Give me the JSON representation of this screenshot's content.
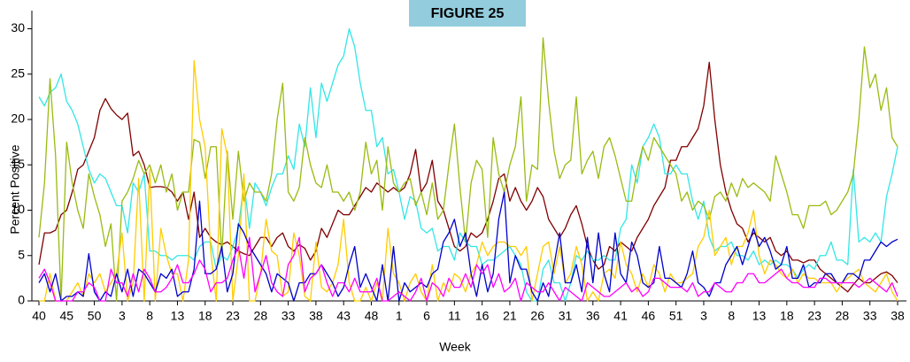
{
  "chart_data": {
    "type": "line",
    "title": "FIGURE 25",
    "x_label": "Week",
    "y_label": "Percent  Positive",
    "categories": [
      "40",
      null,
      null,
      null,
      null,
      "45",
      null,
      null,
      null,
      null,
      "50",
      null,
      null,
      null,
      null,
      "3",
      null,
      null,
      null,
      null,
      "8",
      null,
      null,
      null,
      null,
      "13",
      null,
      null,
      null,
      null,
      "18",
      null,
      null,
      null,
      null,
      "23",
      null,
      null,
      null,
      null,
      "28",
      null,
      null,
      null,
      null,
      "33",
      null,
      null,
      null,
      null,
      "38",
      null,
      null,
      null,
      null,
      "43",
      null,
      null,
      null,
      null,
      "48",
      null,
      null,
      null,
      null,
      "1",
      null,
      null,
      null,
      null,
      "6",
      null,
      null,
      null,
      null,
      "11",
      null,
      null,
      null,
      null,
      "16",
      null,
      null,
      null,
      null,
      "21",
      null,
      null,
      null,
      null,
      "26",
      null,
      null,
      null,
      null,
      "31",
      null,
      null,
      null,
      null,
      "36",
      null,
      null,
      null,
      null,
      "41",
      null,
      null,
      null,
      null,
      "46",
      null,
      null,
      null,
      null,
      "51",
      null,
      null,
      null,
      null,
      "3",
      null,
      null,
      null,
      null,
      "8",
      null,
      null,
      null,
      null,
      "13",
      null,
      null,
      null,
      null,
      "18",
      null,
      null,
      null,
      null,
      "23",
      null,
      null,
      null,
      null,
      "28",
      null,
      null,
      null,
      null,
      "33",
      null,
      null,
      null,
      null,
      "38"
    ],
    "series": [
      {
        "color": "#800000",
        "values": [
          4,
          7.5,
          7.5,
          7.8,
          9.5,
          10,
          12,
          14.5,
          15,
          16.5,
          18,
          21,
          22.3,
          21.2,
          20.5,
          20,
          20.7,
          16,
          16.5,
          15,
          12.5,
          12.6,
          12.6,
          12.5,
          12,
          11,
          12,
          9,
          12,
          7,
          8,
          7,
          6.5,
          6.2,
          6.5,
          6,
          5.5,
          5.2,
          5,
          6,
          7,
          7,
          6,
          7,
          7.5,
          6,
          5.5,
          6.2,
          5.8,
          4.5,
          5.5,
          8,
          7,
          8.5,
          10,
          9.5,
          9.5,
          10.5,
          11.5,
          12.5,
          12,
          13,
          12.5,
          12,
          12.5,
          12,
          12.5,
          14,
          16.7,
          12,
          13,
          15.5,
          11,
          10,
          8,
          6,
          5.5,
          6,
          7.5,
          7,
          7.5,
          9,
          11,
          13.5,
          14,
          11,
          12.5,
          11,
          10,
          11,
          12.5,
          11.5,
          9,
          8,
          7,
          8,
          9.5,
          10.5,
          8.5,
          6,
          4.5,
          3.5,
          4,
          6,
          5.5,
          6.5,
          6,
          5.5,
          7,
          8,
          9,
          10.5,
          11.5,
          12.5,
          15.5,
          15.5,
          17,
          17,
          18,
          19,
          21.5,
          26.3,
          20,
          15,
          12,
          10,
          8.5,
          8,
          6.5,
          7.5,
          7,
          6.5,
          7,
          5.5,
          5,
          5.5,
          4.5,
          4.5,
          4.2,
          4.5,
          4.5,
          3.5,
          3,
          2.5,
          2,
          1.5,
          1,
          1.8,
          2.5,
          2,
          2,
          2.5,
          3,
          3.2,
          2.8,
          2
        ]
      },
      {
        "color": "#33e6e6",
        "values": [
          22.5,
          21.5,
          23,
          23.5,
          25,
          22,
          21,
          19.5,
          17,
          14.5,
          13,
          14,
          13.5,
          12,
          10.5,
          10.5,
          7.5,
          13,
          12,
          14,
          5.5,
          5.5,
          5,
          5,
          4.5,
          5,
          5,
          5,
          4.5,
          6,
          6.5,
          6.5,
          3.5,
          5,
          4.5,
          6,
          8,
          13,
          8,
          13,
          12,
          10.5,
          12.5,
          14,
          14,
          16,
          14.5,
          19.5,
          17,
          23.5,
          18,
          24,
          22,
          24,
          26,
          27,
          30,
          28,
          24,
          21,
          21,
          17,
          18,
          14,
          14.5,
          12,
          9,
          11.5,
          11,
          8,
          7.5,
          8,
          5.5,
          6,
          6,
          4.5,
          7.5,
          6.5,
          6,
          6,
          4,
          4.5,
          4.5,
          5,
          5.5,
          6,
          5,
          4,
          1,
          0,
          0,
          3.5,
          4.5,
          2,
          2,
          0,
          2,
          5,
          4.5,
          5.5,
          4.5,
          4.5,
          5,
          4.5,
          4.5,
          8,
          9,
          15,
          13,
          17,
          18,
          19.5,
          18,
          14,
          14,
          15,
          14,
          14,
          11,
          9,
          11,
          7,
          5.5,
          6,
          6,
          6.5,
          5,
          5,
          4.5,
          5.5,
          4,
          4.5,
          4,
          4.5,
          4,
          4,
          3.5,
          2.5,
          3.5,
          4,
          3.5,
          5,
          5,
          6.5,
          4.5,
          4.5,
          4,
          14.5,
          6.5,
          7,
          6.5,
          7.5,
          6.5,
          11.5,
          14,
          17
        ]
      },
      {
        "color": "#99bb11",
        "values": [
          7,
          13,
          24.5,
          16,
          0,
          17.5,
          13,
          10,
          8,
          14,
          11.5,
          9.5,
          6,
          8.5,
          0,
          11,
          12,
          13.5,
          15.5,
          14,
          15,
          13,
          15,
          12,
          14,
          10,
          12,
          12,
          17.8,
          17.5,
          13.5,
          17,
          17,
          5,
          16.5,
          9,
          16.5,
          11,
          13,
          12,
          12,
          11,
          14,
          20,
          24,
          12,
          11,
          12.5,
          18,
          15,
          13,
          12.5,
          15,
          12,
          12,
          11,
          12,
          10,
          12,
          17.5,
          14,
          15.5,
          10,
          17,
          13,
          12,
          13,
          13.5,
          10.5,
          12,
          9.5,
          13,
          9,
          10,
          15,
          19.5,
          12.5,
          6.5,
          13,
          15.5,
          14.5,
          7,
          18,
          14,
          12,
          15,
          17,
          22.5,
          11,
          15,
          14.5,
          29,
          22,
          16.5,
          13.5,
          15,
          15.5,
          22.5,
          14,
          15.5,
          16.5,
          13.5,
          17,
          18,
          16,
          13.5,
          11,
          11,
          14.5,
          17,
          15.5,
          18,
          17,
          16,
          15,
          14,
          11,
          12,
          10,
          11,
          10.5,
          9,
          11.5,
          12,
          11,
          13,
          11.5,
          13.5,
          12.5,
          13,
          12.5,
          12,
          11,
          16,
          14,
          12,
          9.5,
          9.5,
          8,
          10.5,
          10.5,
          10.5,
          11,
          9.5,
          10,
          11,
          12,
          14,
          20,
          28,
          23.5,
          25,
          21,
          23.5,
          18,
          17
        ]
      },
      {
        "color": "#ffcc00",
        "values": [
          0,
          0,
          3,
          0,
          0,
          0,
          1,
          2,
          0.5,
          3,
          2,
          3,
          1,
          2,
          3,
          7.5,
          0,
          2,
          13.5,
          0,
          14.5,
          0,
          8,
          5,
          3,
          3,
          0,
          4.5,
          26.5,
          20,
          17,
          5.5,
          0,
          19,
          16,
          0,
          5,
          14,
          0,
          0,
          3,
          9,
          5.5,
          5,
          0.5,
          1,
          7.5,
          5,
          0.5,
          0,
          6.5,
          1.5,
          1,
          2,
          4,
          9,
          2,
          0,
          0,
          1.5,
          0,
          2,
          0,
          8,
          3,
          2,
          0,
          2,
          3,
          1,
          0,
          4,
          0,
          2,
          1,
          3,
          2.5,
          1,
          3,
          4,
          6.5,
          5,
          6,
          6.5,
          6.5,
          6,
          6,
          5,
          6,
          0,
          3,
          6,
          6.5,
          3,
          6,
          2,
          3,
          6,
          4,
          0,
          1,
          0,
          3,
          3.5,
          2.5,
          6.5,
          4,
          3,
          1,
          3,
          1.5,
          4,
          3,
          1,
          3,
          2,
          2,
          2.5,
          3,
          6,
          7,
          10,
          5,
          6,
          7,
          4,
          6,
          6,
          7.5,
          10,
          5,
          3,
          4.5,
          4,
          3,
          2.5,
          3.5,
          2,
          3,
          2.5,
          2.5,
          2,
          2,
          2,
          1,
          2,
          2.5,
          3,
          3.5,
          2,
          1.5,
          1,
          2,
          3,
          1,
          0
        ]
      },
      {
        "color": "#0000cc",
        "values": [
          2,
          3,
          1,
          3,
          0,
          0.5,
          0.5,
          1,
          0.5,
          5.2,
          1,
          0,
          1,
          0.5,
          3,
          1,
          3.5,
          0.5,
          3.5,
          3,
          2,
          1,
          3,
          2.5,
          3.5,
          0.5,
          1,
          1,
          3.5,
          11,
          3,
          3,
          3.5,
          6,
          1,
          3,
          8.5,
          7.5,
          6,
          5,
          4,
          3,
          1,
          3,
          2.5,
          2,
          0,
          2,
          2,
          3,
          3,
          4,
          3,
          2,
          0.5,
          1.5,
          4,
          6,
          1.5,
          3,
          1.5,
          0,
          4,
          0,
          6,
          0,
          2,
          1,
          1.5,
          2,
          1.5,
          3,
          3.5,
          6.5,
          7.5,
          9,
          6,
          7.5,
          3,
          0.5,
          4,
          1,
          3,
          9,
          12,
          2,
          5,
          3.5,
          3.5,
          1,
          0,
          2,
          0.5,
          4,
          7.5,
          2,
          2,
          4,
          1,
          7,
          2,
          7.5,
          3,
          1,
          7.5,
          3,
          2,
          6.5,
          5,
          2,
          1.5,
          2,
          6,
          2.5,
          2.5,
          2,
          1.5,
          3,
          5.5,
          2,
          1.5,
          0.5,
          2,
          2,
          4,
          5,
          6,
          4,
          6,
          8,
          6,
          7,
          5.5,
          3.5,
          4,
          6,
          2.5,
          2.5,
          4,
          1.5,
          2,
          2,
          3,
          3,
          2,
          2,
          3,
          3,
          2.5,
          4.5,
          4.5,
          5.5,
          6.5,
          6,
          6.5,
          6.8
        ]
      },
      {
        "color": "#ff00ff",
        "values": [
          2.5,
          3.5,
          2,
          0,
          0,
          0,
          0,
          1,
          1,
          2,
          1.5,
          0,
          0,
          3.5,
          2,
          2,
          0.5,
          3,
          1,
          3.5,
          2.5,
          1,
          1,
          1.5,
          2.5,
          4,
          2,
          2,
          3,
          4.5,
          3.5,
          1,
          2,
          2,
          2.5,
          4.5,
          6,
          2.5,
          7,
          1,
          3,
          5,
          2,
          1,
          0.5,
          4,
          5,
          7,
          1,
          2.5,
          3,
          4,
          2,
          0.5,
          2,
          2,
          1,
          2.5,
          1,
          1,
          1,
          2.5,
          0,
          0,
          0.5,
          1,
          0.5,
          0,
          1,
          2.5,
          0,
          2,
          1.5,
          0.5,
          2.5,
          1.5,
          1.5,
          3,
          1.5,
          4,
          3,
          4,
          1.5,
          3,
          1,
          1.5,
          2.5,
          0,
          2,
          1.5,
          1,
          1,
          2,
          1,
          0,
          1.5,
          1,
          0.5,
          0,
          2,
          1.5,
          1,
          0.5,
          0.5,
          1,
          1.5,
          2,
          1,
          1.5,
          0.5,
          1,
          2.5,
          2.5,
          2,
          1.5,
          1.5,
          1.5,
          1,
          2,
          0.5,
          1,
          1,
          2,
          1.5,
          1,
          1,
          2,
          2,
          3,
          3,
          2,
          2,
          2.5,
          3,
          3.5,
          2.5,
          2,
          2,
          1.5,
          1.5,
          1.5,
          2.5,
          2.5,
          2,
          2,
          2,
          2,
          2,
          1.5,
          2,
          2.5,
          2,
          1.5,
          1,
          2,
          0.5
        ]
      }
    ],
    "ylim": [
      0,
      32
    ],
    "yticks": [
      0,
      5,
      10,
      15,
      20,
      25,
      30
    ]
  }
}
